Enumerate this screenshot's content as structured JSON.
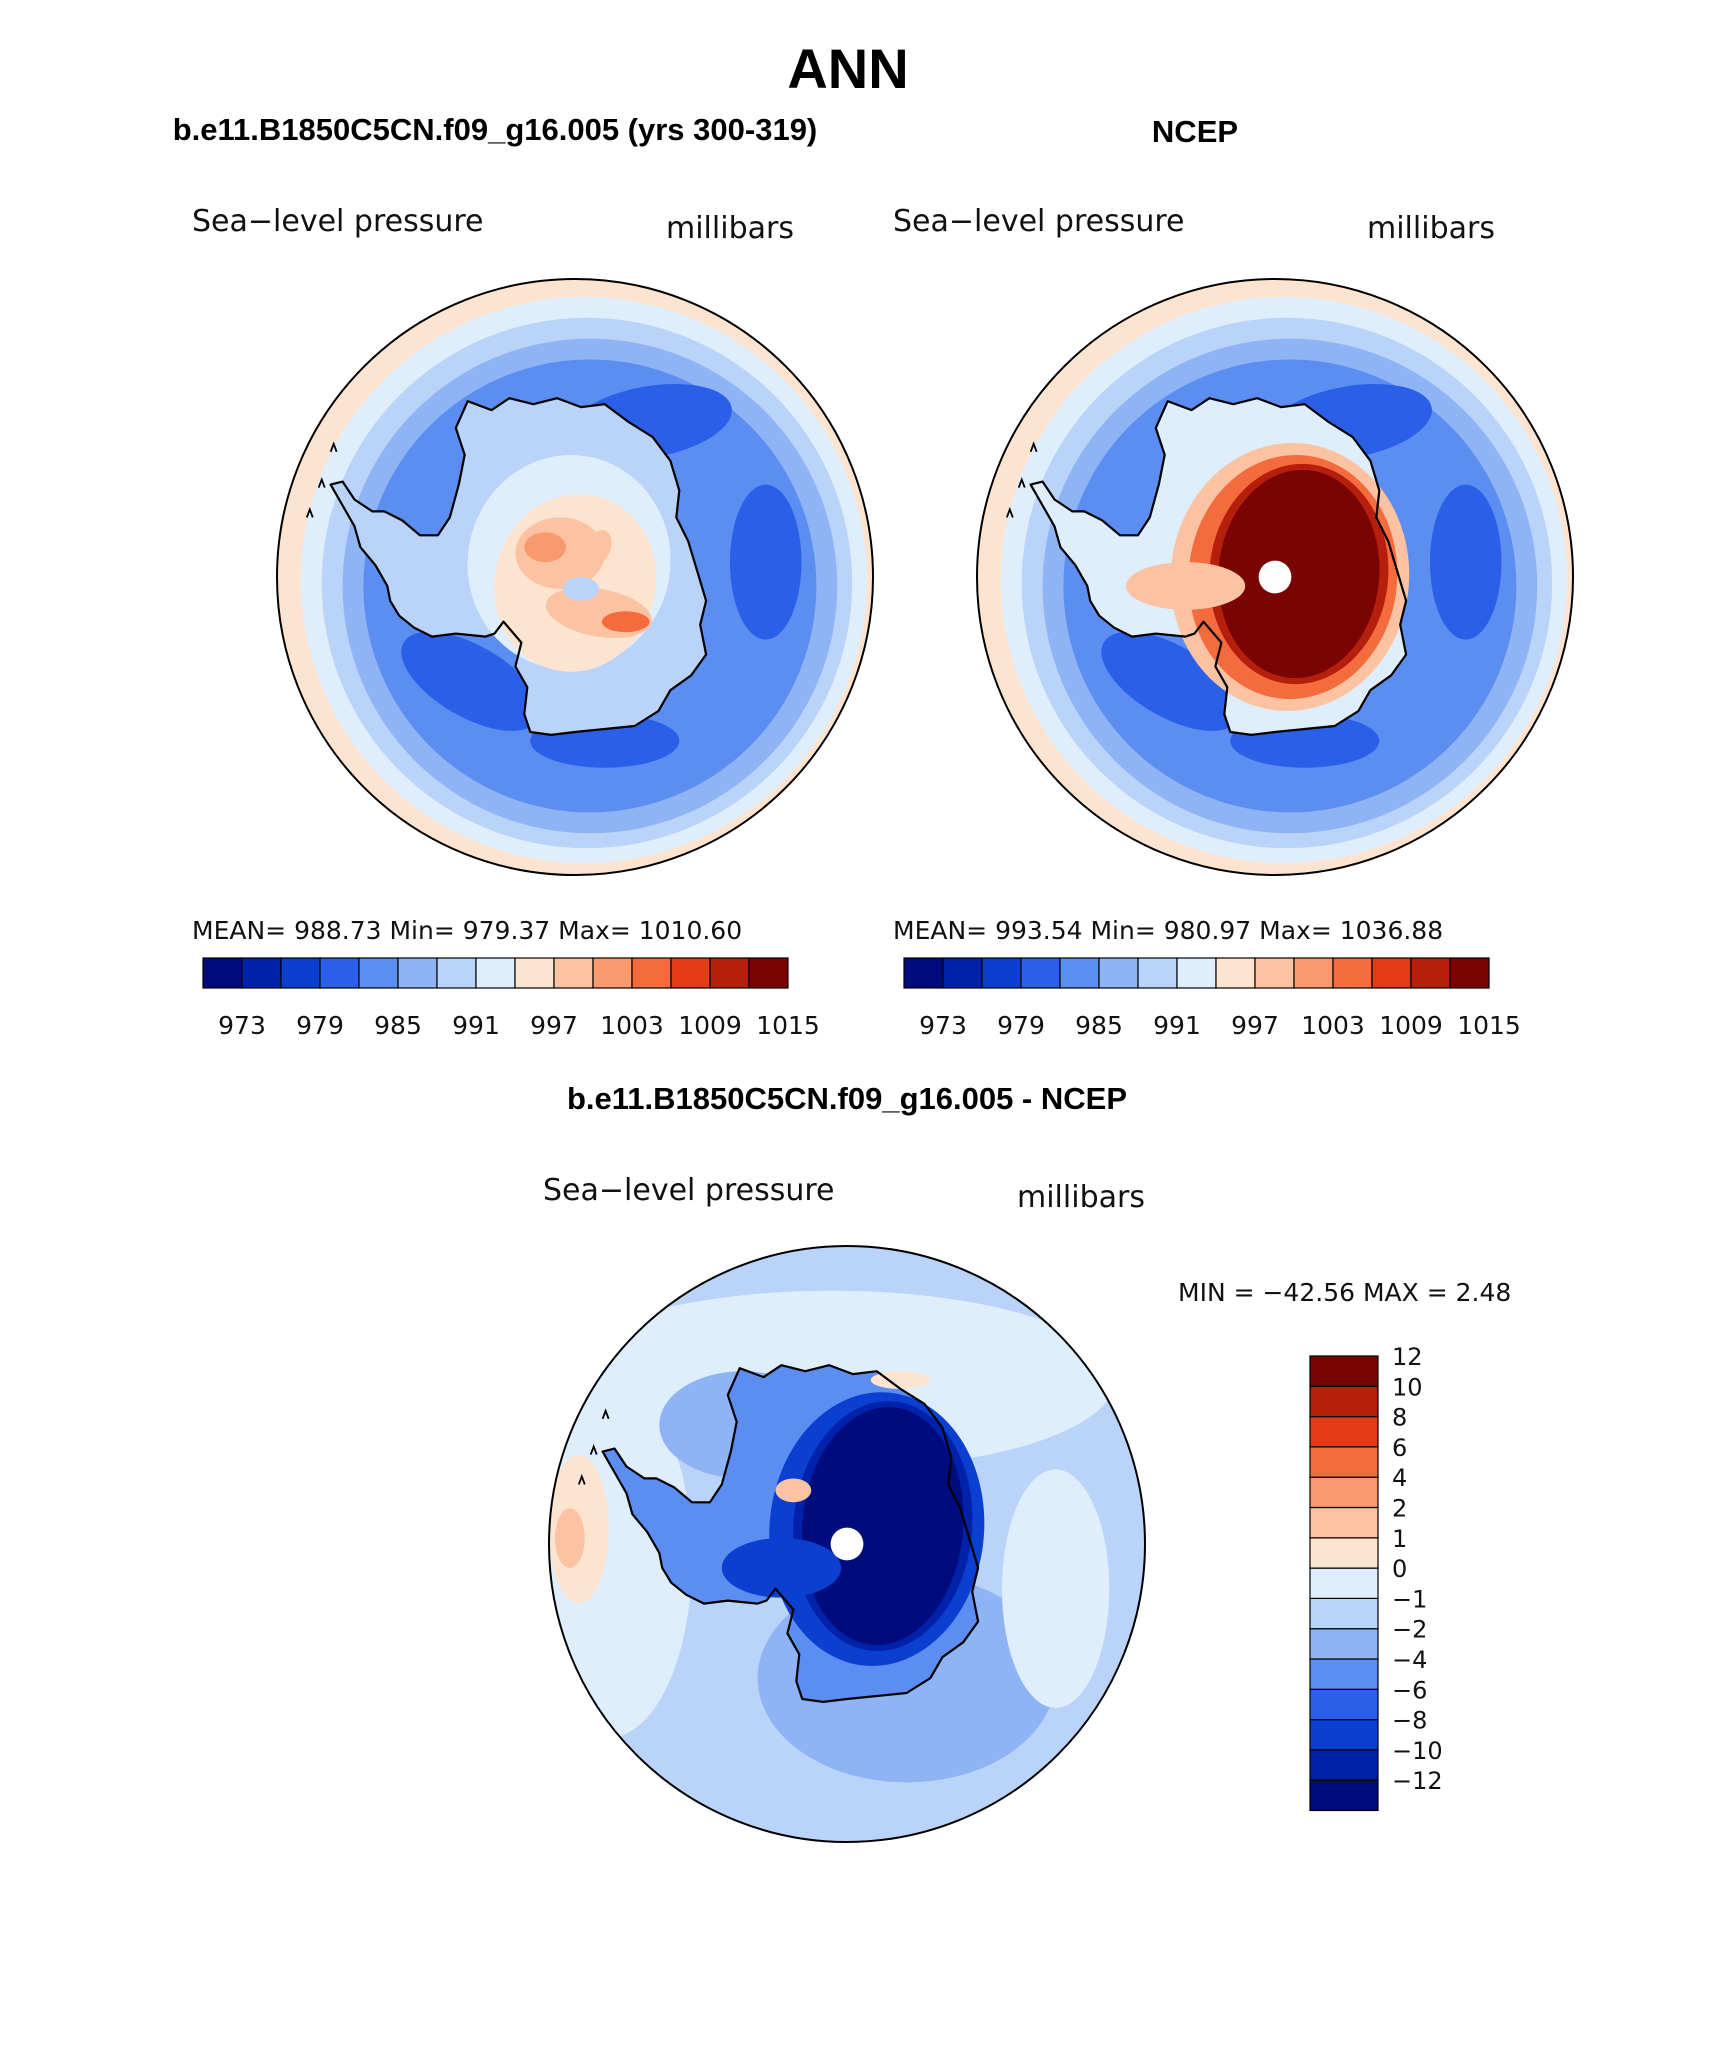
{
  "title": "ANN",
  "panels": [
    {
      "id": "model",
      "heading": "b.e11.B1850C5CN.f09_g16.005 (yrs 300-319)",
      "variable": "Sea−level pressure",
      "units": "millibars",
      "stats": "MEAN=  988.73   Min=  979.37    Max=  1010.60",
      "pattern": "model"
    },
    {
      "id": "obs",
      "heading": "NCEP",
      "variable": "Sea−level pressure",
      "units": "millibars",
      "stats": "MEAN=  993.54   Min=  980.97    Max=  1036.88",
      "pattern": "obs"
    },
    {
      "id": "diff",
      "heading": "b.e11.B1850C5CN.f09_g16.005 - NCEP",
      "variable": "Sea−level pressure",
      "units": "millibars",
      "stats": "MIN  =  −42.56  MAX  =     2.48",
      "pattern": "diff"
    }
  ],
  "abs_colorbar": {
    "colors": [
      "#000c7e",
      "#0022aa",
      "#0a3fd0",
      "#2a60e8",
      "#5c8ef2",
      "#8fb4f6",
      "#bad3f8",
      "#dfeefc",
      "#fde4d0",
      "#fcc3a3",
      "#f99a6e",
      "#f46b3d",
      "#e53a17",
      "#b61f0b",
      "#7a0403"
    ],
    "labels": [
      "973",
      "979",
      "985",
      "991",
      "997",
      "1003",
      "1009",
      "1015"
    ]
  },
  "diff_colorbar": {
    "colors": [
      "#000c7e",
      "#0022aa",
      "#0a3fd0",
      "#2a60e8",
      "#5c8ef2",
      "#8fb4f6",
      "#bad3f8",
      "#dfeefc",
      "#fde4d0",
      "#fcc3a3",
      "#f99a6e",
      "#f46b3d",
      "#e53a17",
      "#b61f0b",
      "#7a0403"
    ],
    "labels": [
      "−12",
      "−10",
      "−8",
      "−6",
      "−4",
      "−2",
      "−1",
      "0",
      "1",
      "2",
      "4",
      "6",
      "8",
      "10",
      "12"
    ]
  }
}
